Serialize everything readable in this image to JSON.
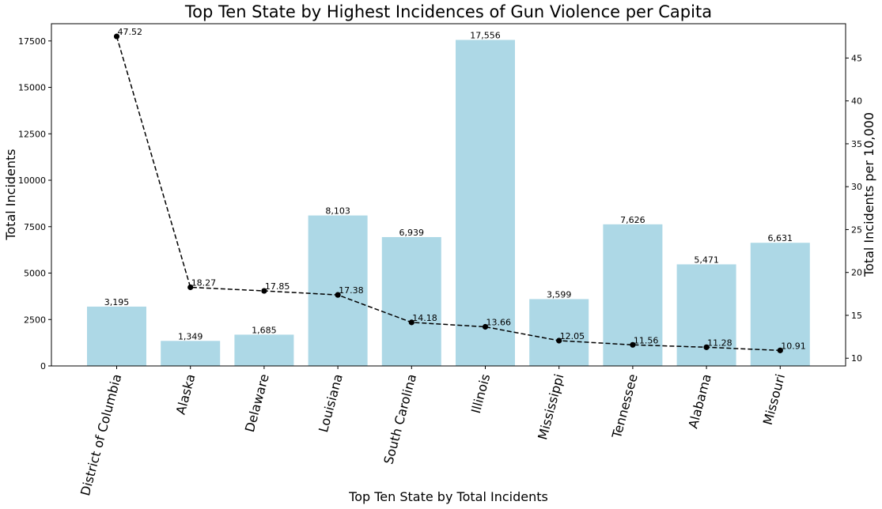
{
  "chart_data": {
    "type": "bar",
    "title": "Top Ten State by Highest Incidences of Gun Violence per Capita",
    "xlabel": "Top Ten State by Total Incidents",
    "ylabel": "Total Incidents",
    "y2label": "Total Incidents per 10,000",
    "categories": [
      "District of Columbia",
      "Alaska",
      "Delaware",
      "Louisiana",
      "South Carolina",
      "Illinois",
      "Mississippi",
      "Tennessee",
      "Alabama",
      "Missouri"
    ],
    "ylim": [
      0,
      18428
    ],
    "y2lim": [
      9.1,
      49.0
    ],
    "yticks": [
      0,
      2500,
      5000,
      7500,
      10000,
      12500,
      15000,
      17500
    ],
    "y2ticks": [
      10,
      15,
      20,
      25,
      30,
      35,
      40,
      45
    ],
    "grid": false,
    "series": [
      {
        "type": "bar",
        "axis": "left",
        "color": "#add8e6",
        "values": [
          3195,
          1349,
          1685,
          8103,
          6939,
          17556,
          3599,
          7626,
          5471,
          6631
        ],
        "labels": [
          "3,195",
          "1,349",
          "1,685",
          "8,103",
          "6,939",
          "17,556",
          "3,599",
          "7,626",
          "5,471",
          "6,631"
        ]
      },
      {
        "type": "line",
        "axis": "right",
        "color": "#000000",
        "line_style": "dashed",
        "marker": "circle",
        "values": [
          47.52,
          18.27,
          17.85,
          17.38,
          14.18,
          13.66,
          12.05,
          11.56,
          11.28,
          10.91
        ],
        "labels": [
          "47.52",
          "18.27",
          "17.85",
          "17.38",
          "14.18",
          "13.66",
          "12.05",
          "11.56",
          "11.28",
          "10.91"
        ]
      }
    ]
  }
}
